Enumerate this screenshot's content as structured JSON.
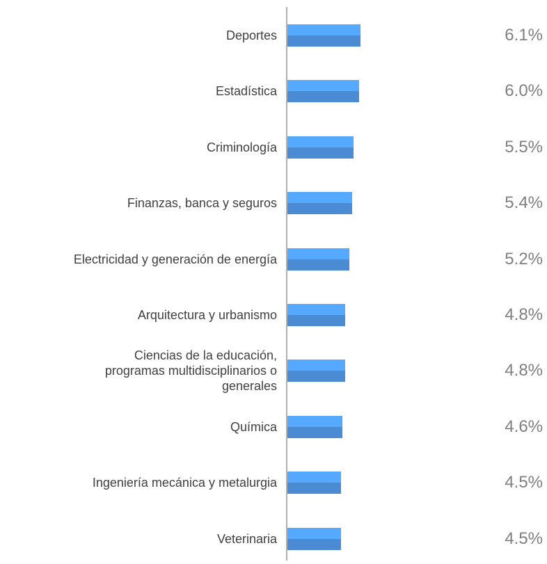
{
  "chart_data": {
    "type": "barh",
    "categories": [
      "Deportes",
      "Estadística",
      "Criminología",
      "Finanzas, banca y seguros",
      "Electricidad y generación de energía",
      "Arquitectura y urbanismo",
      "Ciencias de la educación,\nprogramas multidisciplinarios o\ngenerales",
      "Química",
      "Ingeniería mecánica y metalurgia",
      "Veterinaria"
    ],
    "values": [
      6.1,
      6.0,
      5.5,
      5.4,
      5.2,
      4.8,
      4.8,
      4.6,
      4.5,
      4.5
    ],
    "value_labels": [
      "6.1%",
      "6.0%",
      "5.5%",
      "5.4%",
      "5.2%",
      "4.8%",
      "4.8%",
      "4.6%",
      "4.5%",
      "4.5%"
    ],
    "color": "#55aaff",
    "shade_color": "#4a8bd4"
  }
}
